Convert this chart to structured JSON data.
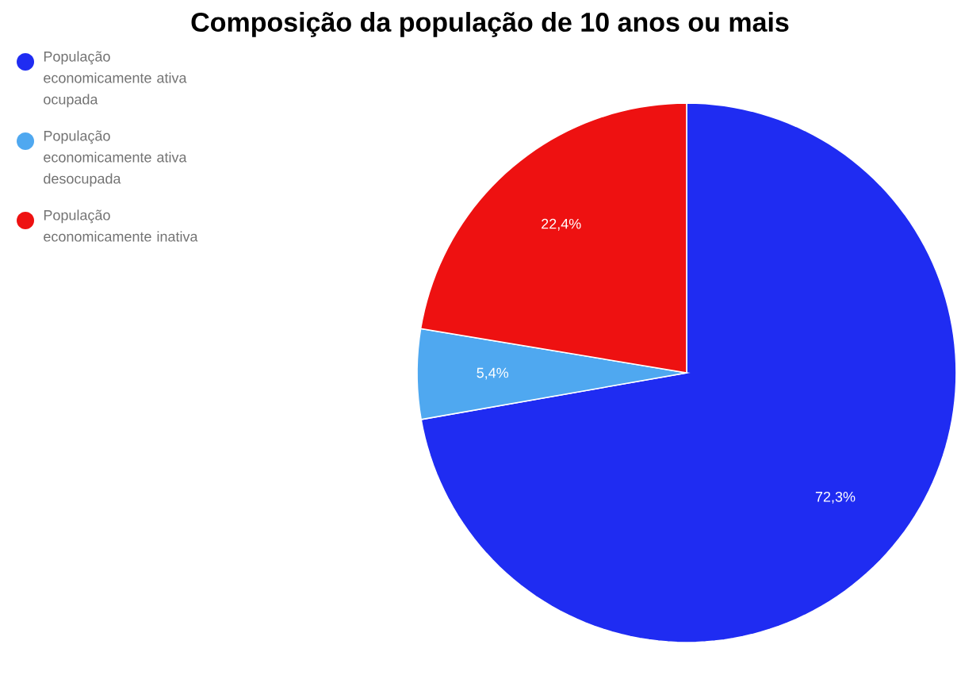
{
  "chart_data": {
    "type": "pie",
    "title": "Composição da população de 10 anos ou mais",
    "categories": [
      "População economicamente ativa ocupada",
      "População economicamente ativa desocupada",
      "População economicamente inativa"
    ],
    "values": [
      72.3,
      5.4,
      22.4
    ],
    "value_labels": [
      "72,3%",
      "5,4%",
      "22,4%"
    ],
    "colors": [
      "#1f2cf2",
      "#4fa8f0",
      "#ee1111"
    ],
    "legend": "top left"
  }
}
